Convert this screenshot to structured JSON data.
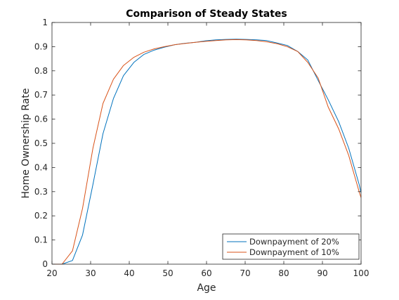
{
  "chart_data": {
    "type": "line",
    "title": "Comparison of Steady States",
    "xlabel": "Age",
    "ylabel": "Home Ownership Rate",
    "xlim": [
      20,
      100
    ],
    "ylim": [
      0,
      1
    ],
    "xticks": [
      20,
      30,
      40,
      50,
      60,
      70,
      80,
      90,
      100
    ],
    "yticks": [
      0,
      0.1,
      0.2,
      0.3,
      0.4,
      0.5,
      0.6,
      0.7,
      0.8,
      0.9,
      1
    ],
    "grid": false,
    "legend_position": "bottom-right",
    "series": [
      {
        "name": "Downpayment of 20%",
        "color": "#0072BD",
        "x": [
          20,
          22.6,
          25.3,
          27.9,
          30.6,
          33.2,
          35.9,
          38.5,
          41.2,
          43.8,
          46.5,
          49.1,
          51.8,
          54.4,
          57.1,
          59.7,
          62.4,
          65.0,
          67.7,
          70.3,
          73.0,
          75.6,
          78.3,
          80.9,
          83.6,
          86.2,
          88.9,
          91.5,
          94.2,
          96.8,
          99.5,
          100
        ],
        "y": [
          0,
          0,
          0.015,
          0.12,
          0.33,
          0.54,
          0.685,
          0.78,
          0.835,
          0.868,
          0.886,
          0.898,
          0.908,
          0.914,
          0.918,
          0.924,
          0.928,
          0.93,
          0.931,
          0.93,
          0.928,
          0.925,
          0.915,
          0.905,
          0.88,
          0.845,
          0.76,
          0.68,
          0.59,
          0.48,
          0.33,
          0.295
        ]
      },
      {
        "name": "Downpayment of 10%",
        "color": "#D95319",
        "x": [
          20,
          22.6,
          25.3,
          27.9,
          30.6,
          33.2,
          35.9,
          38.5,
          41.2,
          43.8,
          46.5,
          49.1,
          51.8,
          54.4,
          57.1,
          59.7,
          62.4,
          65.0,
          67.7,
          70.3,
          73.0,
          75.6,
          78.3,
          80.9,
          83.6,
          86.2,
          88.9,
          91.5,
          94.2,
          96.8,
          99.5,
          100
        ],
        "y": [
          0,
          0,
          0.055,
          0.23,
          0.48,
          0.665,
          0.765,
          0.822,
          0.856,
          0.877,
          0.891,
          0.9,
          0.908,
          0.913,
          0.918,
          0.922,
          0.925,
          0.928,
          0.929,
          0.928,
          0.925,
          0.92,
          0.912,
          0.9,
          0.88,
          0.835,
          0.77,
          0.65,
          0.56,
          0.45,
          0.3,
          0.275
        ]
      }
    ]
  }
}
